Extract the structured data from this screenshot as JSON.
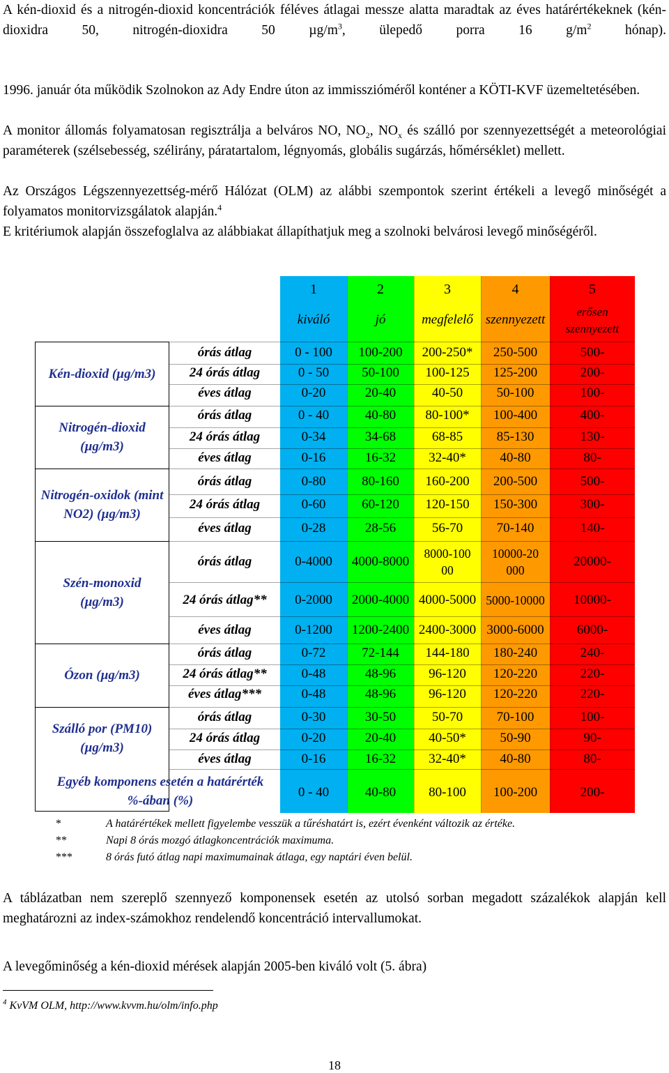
{
  "intro": {
    "p1": "A kén-dioxid és a nitrogén-dioxid koncentrációk féléves átlagai messze alatta maradtak az éves határértékeknek (kén-dioxidra 50, nitrogén-dioxidra 50 µg/m",
    "p1_sup": "3",
    "p1_b": ", ülepedő porra 16 g/m",
    "p1_sup2": "2",
    "p1_c": " hónap).",
    "p2": "1996. január óta működik Szolnokon az Ady Endre úton az immisszióméről konténer a KÖTI-KVF üzemeltetésében.",
    "p3a": "A monitor állomás folyamatosan regisztrálja a belváros NO, NO",
    "p3_sub1": "2",
    "p3b": ", NO",
    "p3_sub2": "x",
    "p3c": " és szálló por szennyezettségét a meteorológiai paraméterek (szélsebesség, szélirány, páratartalom, légnyomás, globális sugárzás, hőmérséklet) mellett.",
    "p4": "Az Országos Légszennyezettség-mérő Hálózat (OLM) az alábbi szempontok szerint értékeli a levegő minőségét a folyamatos monitorvizsgálatok alapján.",
    "p4_sup": "4",
    "p5": "E kritériumok alapján összefoglalva az alábbiakat állapíthatjuk meg a szolnoki belvárosi levegő minőségéről."
  },
  "table": {
    "levels": [
      {
        "num": "1",
        "name": "kiváló"
      },
      {
        "num": "2",
        "name": "jó"
      },
      {
        "num": "3",
        "name": "megfelelő"
      },
      {
        "num": "4",
        "name": "szennyezett"
      },
      {
        "num": "5",
        "name": "erősen szennyezett"
      }
    ],
    "colors": [
      "#00b0f0",
      "#00ff00",
      "#ffff00",
      "#ff9900",
      "#ff0000"
    ],
    "groups": [
      {
        "label": "Kén-dioxid (µg/m3)",
        "rows": [
          {
            "avg": "órás átlag",
            "v": [
              "0 - 100",
              "100-200",
              "200-250*",
              "250-500",
              "500-"
            ]
          },
          {
            "avg": "24 órás átlag",
            "v": [
              "0 - 50",
              "50-100",
              "100-125",
              "125-200",
              "200-"
            ]
          },
          {
            "avg": "éves átlag",
            "v": [
              "0-20",
              "20-40",
              "40-50",
              "50-100",
              "100-"
            ]
          }
        ]
      },
      {
        "label": "Nitrogén-dioxid (µg/m3)",
        "rows": [
          {
            "avg": "órás átlag",
            "v": [
              "0 - 40",
              "40-80",
              "80-100*",
              "100-400",
              "400-"
            ]
          },
          {
            "avg": "24 órás átlag",
            "v": [
              "0-34",
              "34-68",
              "68-85",
              "85-130",
              "130-"
            ]
          },
          {
            "avg": "éves átlag",
            "v": [
              "0-16",
              "16-32",
              "32-40*",
              "40-80",
              "80-"
            ]
          }
        ]
      },
      {
        "label": "Nitrogén-oxidok (mint NO2) (µg/m3)",
        "rows": [
          {
            "avg": "órás átlag",
            "v": [
              "0-80",
              "80-160",
              "160-200",
              "200-500",
              "500-"
            ]
          },
          {
            "avg": "24 órás átlag",
            "v": [
              "0-60",
              "60-120",
              "120-150",
              "150-300",
              "300-"
            ]
          },
          {
            "avg": "éves átlag",
            "v": [
              "0-28",
              "28-56",
              "56-70",
              "70-140",
              "140-"
            ]
          }
        ]
      },
      {
        "label": "Szén-monoxid (µg/m3)",
        "rows": [
          {
            "avg": "órás átlag",
            "v": [
              "0-4000",
              "4000-8000",
              "8000-10000",
              "10000-20000",
              "20000-"
            ]
          },
          {
            "avg": "24 órás átlag**",
            "v": [
              "0-2000",
              "2000-4000",
              "4000-5000",
              "5000-10000",
              "10000-"
            ]
          },
          {
            "avg": "éves átlag",
            "v": [
              "0-1200",
              "1200-2400",
              "2400-3000",
              "3000-6000",
              "6000-"
            ]
          }
        ]
      },
      {
        "label": "Ózon (µg/m3)",
        "rows": [
          {
            "avg": "órás átlag",
            "v": [
              "0-72",
              "72-144",
              "144-180",
              "180-240",
              "240-"
            ]
          },
          {
            "avg": "24 órás átlag**",
            "v": [
              "0-48",
              "48-96",
              "96-120",
              "120-220",
              "220-"
            ]
          },
          {
            "avg": "éves átlag***",
            "v": [
              "0-48",
              "48-96",
              "96-120",
              "120-220",
              "220-"
            ]
          }
        ]
      },
      {
        "label": "Szálló por (PM10) (µg/m3)",
        "rows": [
          {
            "avg": "órás átlag",
            "v": [
              "0-30",
              "30-50",
              "50-70",
              "70-100",
              "100-"
            ]
          },
          {
            "avg": "24 órás átlag",
            "v": [
              "0-20",
              "20-40",
              "40-50*",
              "50-90",
              "90-"
            ]
          },
          {
            "avg": "éves átlag",
            "v": [
              "0-16",
              "16-32",
              "32-40*",
              "40-80",
              "80-"
            ]
          }
        ]
      }
    ],
    "other": {
      "label": "Egyéb komponens esetén a határérték %-ában (%)",
      "v": [
        "0 - 40",
        "40-80",
        "80-100",
        "100-200",
        "200-"
      ]
    }
  },
  "notes": [
    {
      "key": "*",
      "text": "A határértékek mellett figyelembe vesszük a tűréshatárt is, ezért évenként változik az értéke."
    },
    {
      "key": "**",
      "text": "Napi 8 órás mozgó átlagkoncentrációk maximuma."
    },
    {
      "key": "***",
      "text": "8 órás futó átlag napi maximumainak átlaga, egy naptári éven belül."
    }
  ],
  "outro": {
    "p1": "A táblázatban nem szereplő szennyező komponensek esetén az utolsó sorban megadott százalékok alapján kell meghatározni az index-számokhoz rendelendő koncentráció intervallumokat.",
    "p2": "A levegőminőség a kén-dioxid mérések alapján 2005-ben kiváló volt (5. ábra)"
  },
  "footnote": {
    "num": "4",
    "text": "KvVM OLM, http://www.kvvm.hu/olm/info.php"
  },
  "page_number": "18"
}
